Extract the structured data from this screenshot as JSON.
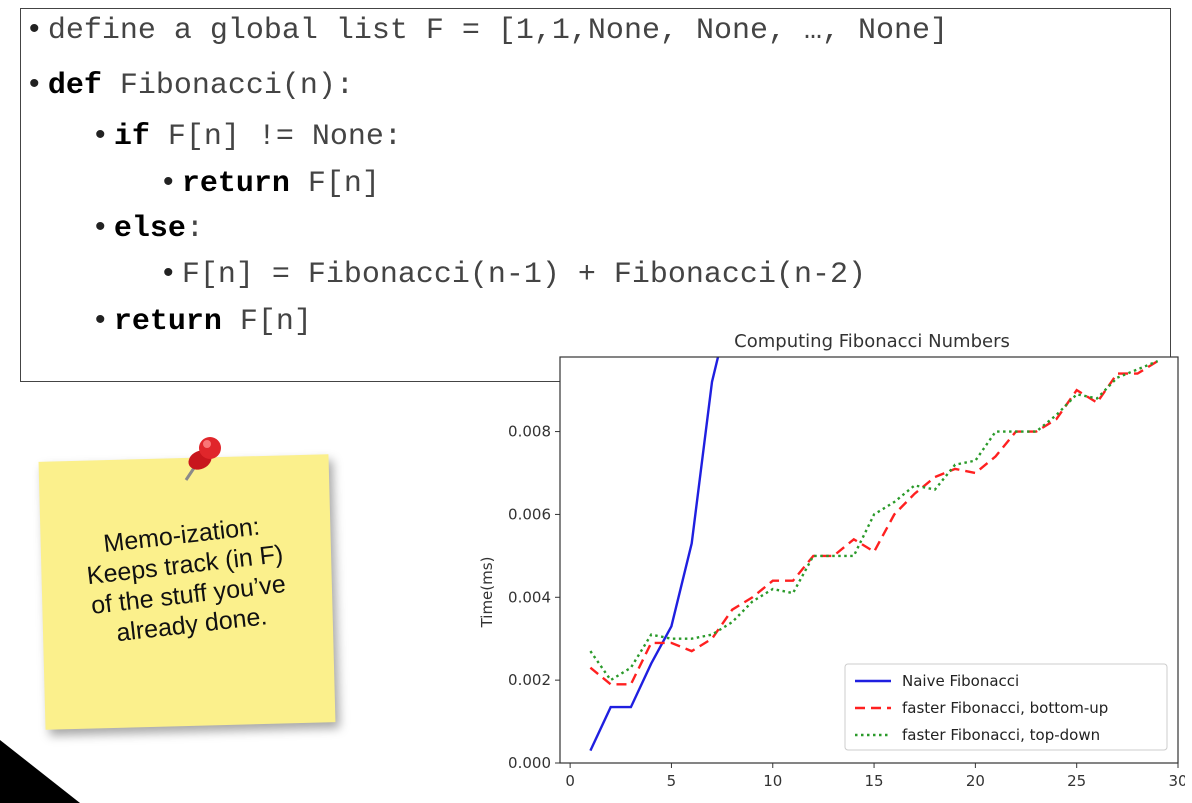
{
  "code": {
    "lines": [
      {
        "indent": 0,
        "kw": "",
        "text": "define a global list F = [1,1,None, None, …, None]"
      },
      {
        "indent": 0,
        "kw": "def",
        "text": " Fibonacci(n):"
      },
      {
        "indent": 1,
        "kw": "if",
        "text": " F[n] != None:"
      },
      {
        "indent": 2,
        "kw": "return",
        "text": " F[n]"
      },
      {
        "indent": 1,
        "kw": "else",
        "text": ":"
      },
      {
        "indent": 2,
        "kw": "",
        "text": "F[n] = Fibonacci(n-1) + Fibonacci(n-2)"
      },
      {
        "indent": 1,
        "kw": "return",
        "text": " F[n]"
      }
    ]
  },
  "note": {
    "lines": [
      "Memo-ization:",
      "Keeps track (in F)",
      "of the stuff you’ve",
      "already done."
    ],
    "color": "#fbf08c"
  },
  "chart_data": {
    "type": "line",
    "title": "Computing Fibonacci Numbers",
    "xlabel": "",
    "ylabel": "Time(ms)",
    "xlim": [
      -0.5,
      30
    ],
    "ylim": [
      0,
      0.0098
    ],
    "xticks": [
      0,
      5,
      10,
      15,
      20,
      25,
      30
    ],
    "yticks": [
      0.0,
      0.002,
      0.004,
      0.006,
      0.008
    ],
    "ytick_labels": [
      "0.000",
      "0.002",
      "0.004",
      "0.006",
      "0.008"
    ],
    "legend_position": "lower-right",
    "series": [
      {
        "name": "Naive Fibonacci",
        "color": "#1f1fe0",
        "dash": "solid",
        "x": [
          1,
          2,
          3,
          4,
          5,
          6,
          7,
          7.3
        ],
        "y": [
          0.0003,
          0.00135,
          0.00135,
          0.0024,
          0.0033,
          0.0053,
          0.0092,
          0.0098
        ]
      },
      {
        "name": "faster Fibonacci, bottom-up",
        "color": "#ff2020",
        "dash": "dashed",
        "x": [
          1,
          2,
          3,
          4,
          5,
          6,
          7,
          8,
          9,
          10,
          11,
          12,
          13,
          14,
          15,
          16,
          17,
          18,
          19,
          20,
          21,
          22,
          23,
          24,
          25,
          26,
          27,
          28,
          29
        ],
        "y": [
          0.0023,
          0.0019,
          0.0019,
          0.0029,
          0.0029,
          0.0027,
          0.003,
          0.0037,
          0.004,
          0.0044,
          0.0044,
          0.005,
          0.005,
          0.0054,
          0.0051,
          0.006,
          0.0065,
          0.0069,
          0.0071,
          0.007,
          0.0074,
          0.008,
          0.008,
          0.0083,
          0.009,
          0.0087,
          0.0094,
          0.0094,
          0.0097
        ]
      },
      {
        "name": "faster Fibonacci, top-down",
        "color": "#2a9a2a",
        "dash": "dotted",
        "x": [
          1,
          2,
          3,
          4,
          5,
          6,
          7,
          8,
          9,
          10,
          11,
          12,
          13,
          14,
          15,
          16,
          17,
          18,
          19,
          20,
          21,
          22,
          23,
          24,
          25,
          26,
          27,
          28,
          29
        ],
        "y": [
          0.0027,
          0.002,
          0.0023,
          0.0031,
          0.003,
          0.003,
          0.0031,
          0.0034,
          0.0039,
          0.0042,
          0.0041,
          0.005,
          0.005,
          0.005,
          0.006,
          0.0063,
          0.0067,
          0.0066,
          0.0072,
          0.0073,
          0.008,
          0.008,
          0.008,
          0.0084,
          0.0089,
          0.0088,
          0.0093,
          0.0095,
          0.0097
        ]
      }
    ]
  }
}
